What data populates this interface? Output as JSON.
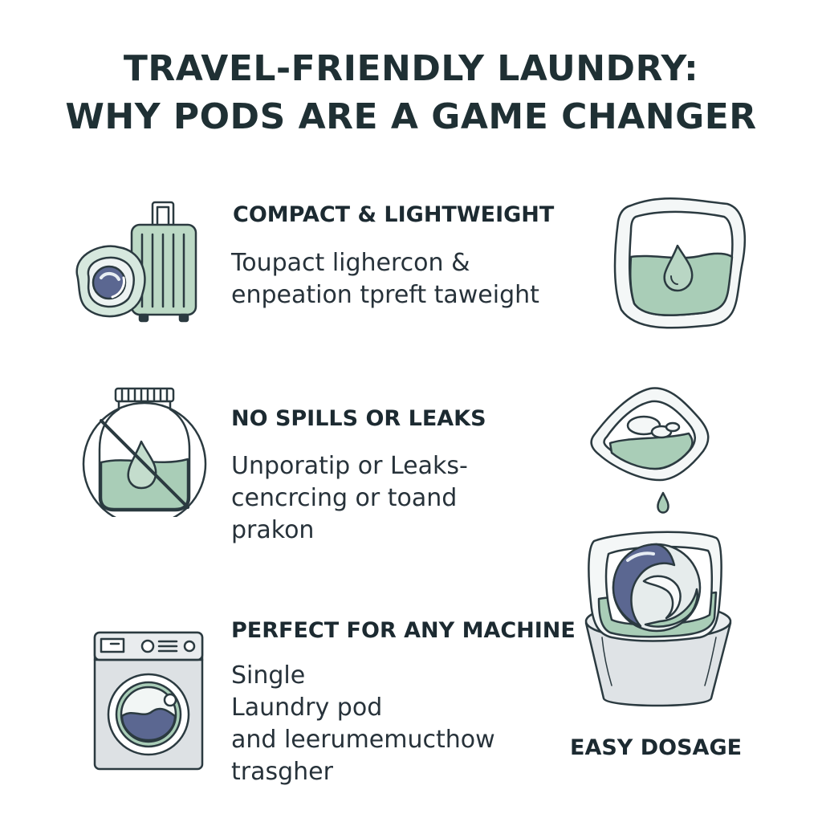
{
  "title": {
    "line1": "TRAVEL-FRIENDLY LAUNDRY:",
    "line2": "WHY PODS ARE A GAME CHANGER"
  },
  "sections": [
    {
      "heading": "COMPACT & LIGHTWEIGHT",
      "lines": [
        "Toupact lighercon &",
        "enpeation tpreft taweight"
      ],
      "icon": "suitcase-with-pod-icon"
    },
    {
      "heading": "NO SPILLS OR LEAKS",
      "lines": [
        "Unporatip or Leaks-",
        "cencrcing or toand",
        "prakon"
      ],
      "icon": "no-liquid-detergent-icon"
    },
    {
      "heading": "PERFECT FOR ANY MACHINE",
      "lines": [
        "Single",
        "Laundry pod",
        "and leerumemucthow",
        "trasgher"
      ],
      "icon": "washing-machine-icon"
    }
  ],
  "right_column": {
    "icons": [
      "pod-packet-icon",
      "dissolving-pod-icon",
      "pod-in-bucket-icon"
    ],
    "caption": "EASY DOSAGE"
  },
  "colors": {
    "outline": "#2b3a40",
    "pod_green": "#a9cdb7",
    "pod_navy": "#5b6791",
    "suitcase_green": "#b9d8c4",
    "bucket_gray": "#dde1e4"
  }
}
